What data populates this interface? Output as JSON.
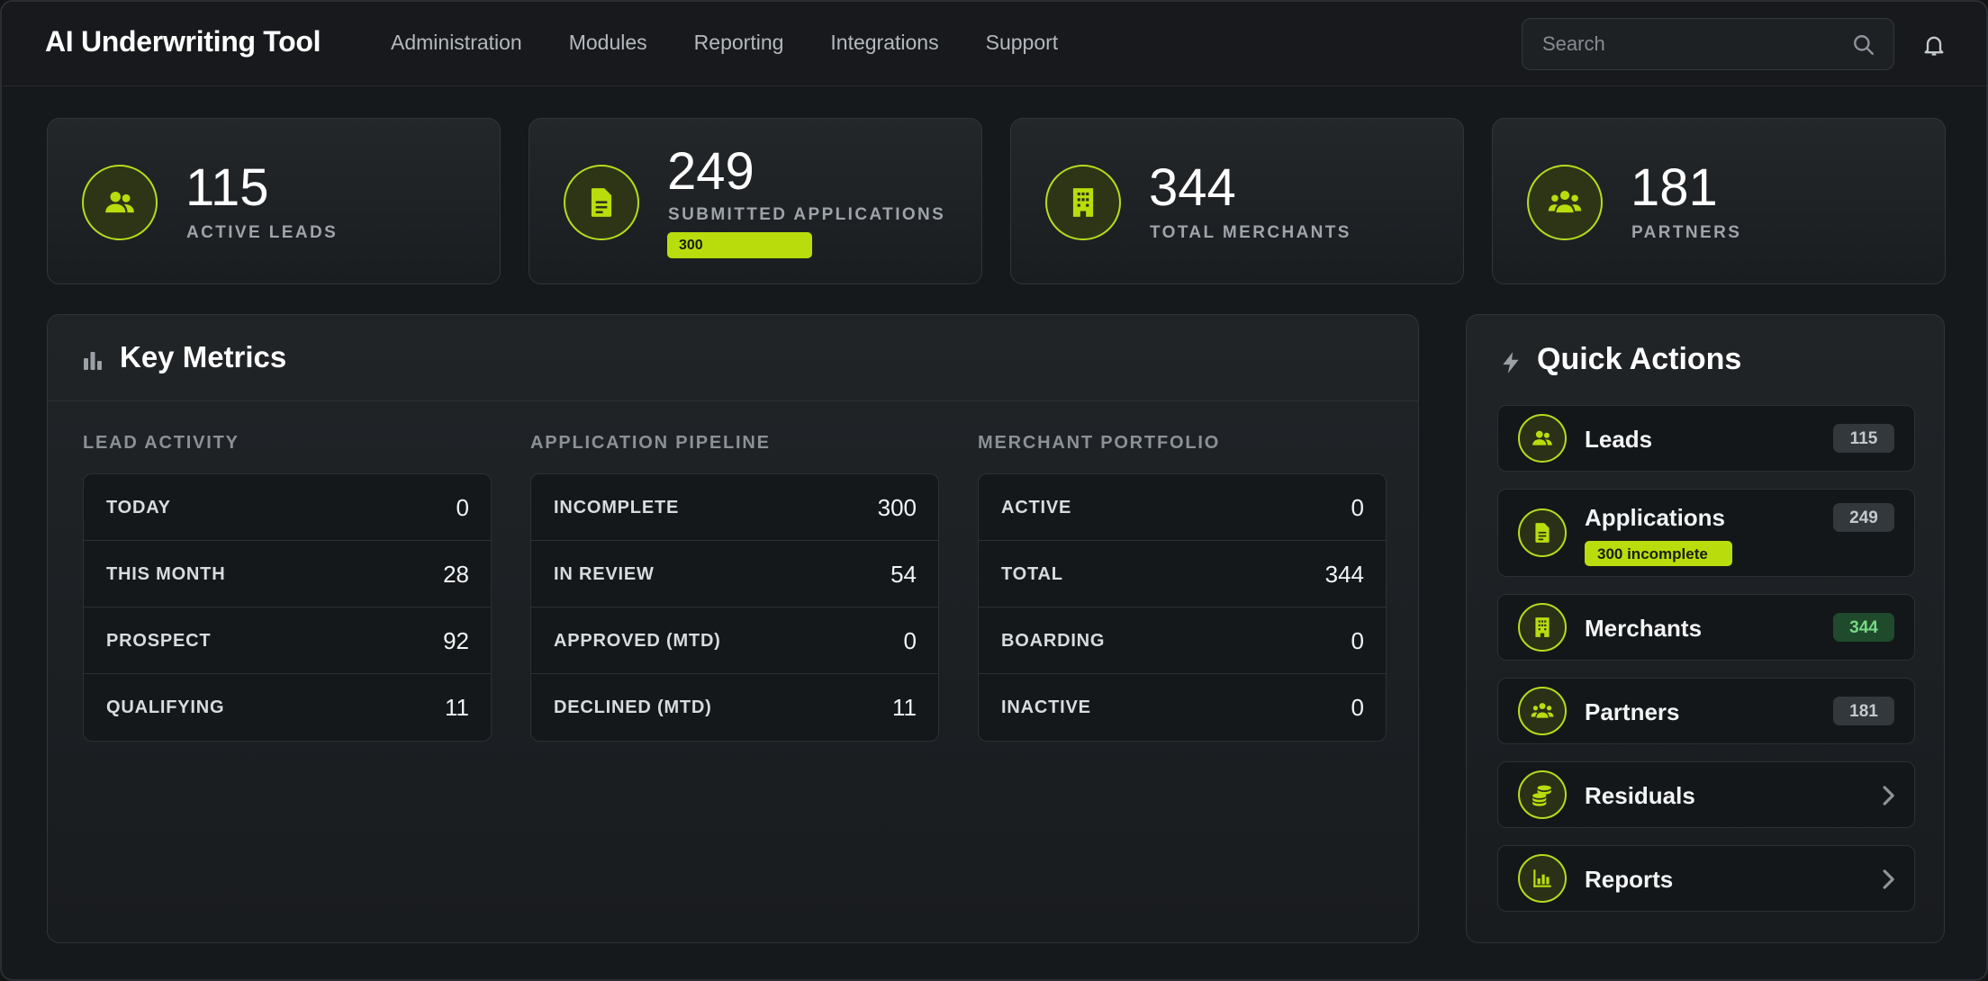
{
  "app": {
    "title": "AI Underwriting Tool"
  },
  "nav": [
    "Administration",
    "Modules",
    "Reporting",
    "Integrations",
    "Support"
  ],
  "search": {
    "placeholder": "Search"
  },
  "colors": {
    "accent": "#b9dd0c",
    "background": "#16191b",
    "success": "#78d986"
  },
  "stats": [
    {
      "value": "115",
      "label": "ACTIVE LEADS",
      "icon": "users-icon"
    },
    {
      "value": "249",
      "label": "SUBMITTED APPLICATIONS",
      "pill": "300",
      "icon": "document-icon"
    },
    {
      "value": "344",
      "label": "TOTAL MERCHANTS",
      "icon": "building-icon"
    },
    {
      "value": "181",
      "label": "PARTNERS",
      "icon": "group-icon"
    }
  ],
  "metrics": {
    "title": "Key Metrics",
    "columns": [
      {
        "title": "LEAD ACTIVITY",
        "rows": [
          {
            "label": "TODAY",
            "value": "0"
          },
          {
            "label": "THIS MONTH",
            "value": "28"
          },
          {
            "label": "PROSPECT",
            "value": "92"
          },
          {
            "label": "QUALIFYING",
            "value": "11"
          }
        ]
      },
      {
        "title": "APPLICATION PIPELINE",
        "rows": [
          {
            "label": "INCOMPLETE",
            "value": "300"
          },
          {
            "label": "IN REVIEW",
            "value": "54"
          },
          {
            "label": "APPROVED (MTD)",
            "value": "0"
          },
          {
            "label": "DECLINED (MTD)",
            "value": "11"
          }
        ]
      },
      {
        "title": "MERCHANT PORTFOLIO",
        "rows": [
          {
            "label": "ACTIVE",
            "value": "0"
          },
          {
            "label": "TOTAL",
            "value": "344"
          },
          {
            "label": "BOARDING",
            "value": "0"
          },
          {
            "label": "INACTIVE",
            "value": "0"
          }
        ]
      }
    ]
  },
  "quick_actions": {
    "title": "Quick Actions",
    "items": [
      {
        "label": "Leads",
        "badge": "115",
        "icon": "users-icon"
      },
      {
        "label": "Applications",
        "badge": "249",
        "sub": "300 incomplete",
        "icon": "document-icon"
      },
      {
        "label": "Merchants",
        "badge": "344",
        "icon": "building-icon"
      },
      {
        "label": "Partners",
        "badge": "181",
        "icon": "group-icon"
      },
      {
        "label": "Residuals",
        "icon": "coins-icon"
      },
      {
        "label": "Reports",
        "icon": "bar-chart-icon"
      }
    ]
  }
}
